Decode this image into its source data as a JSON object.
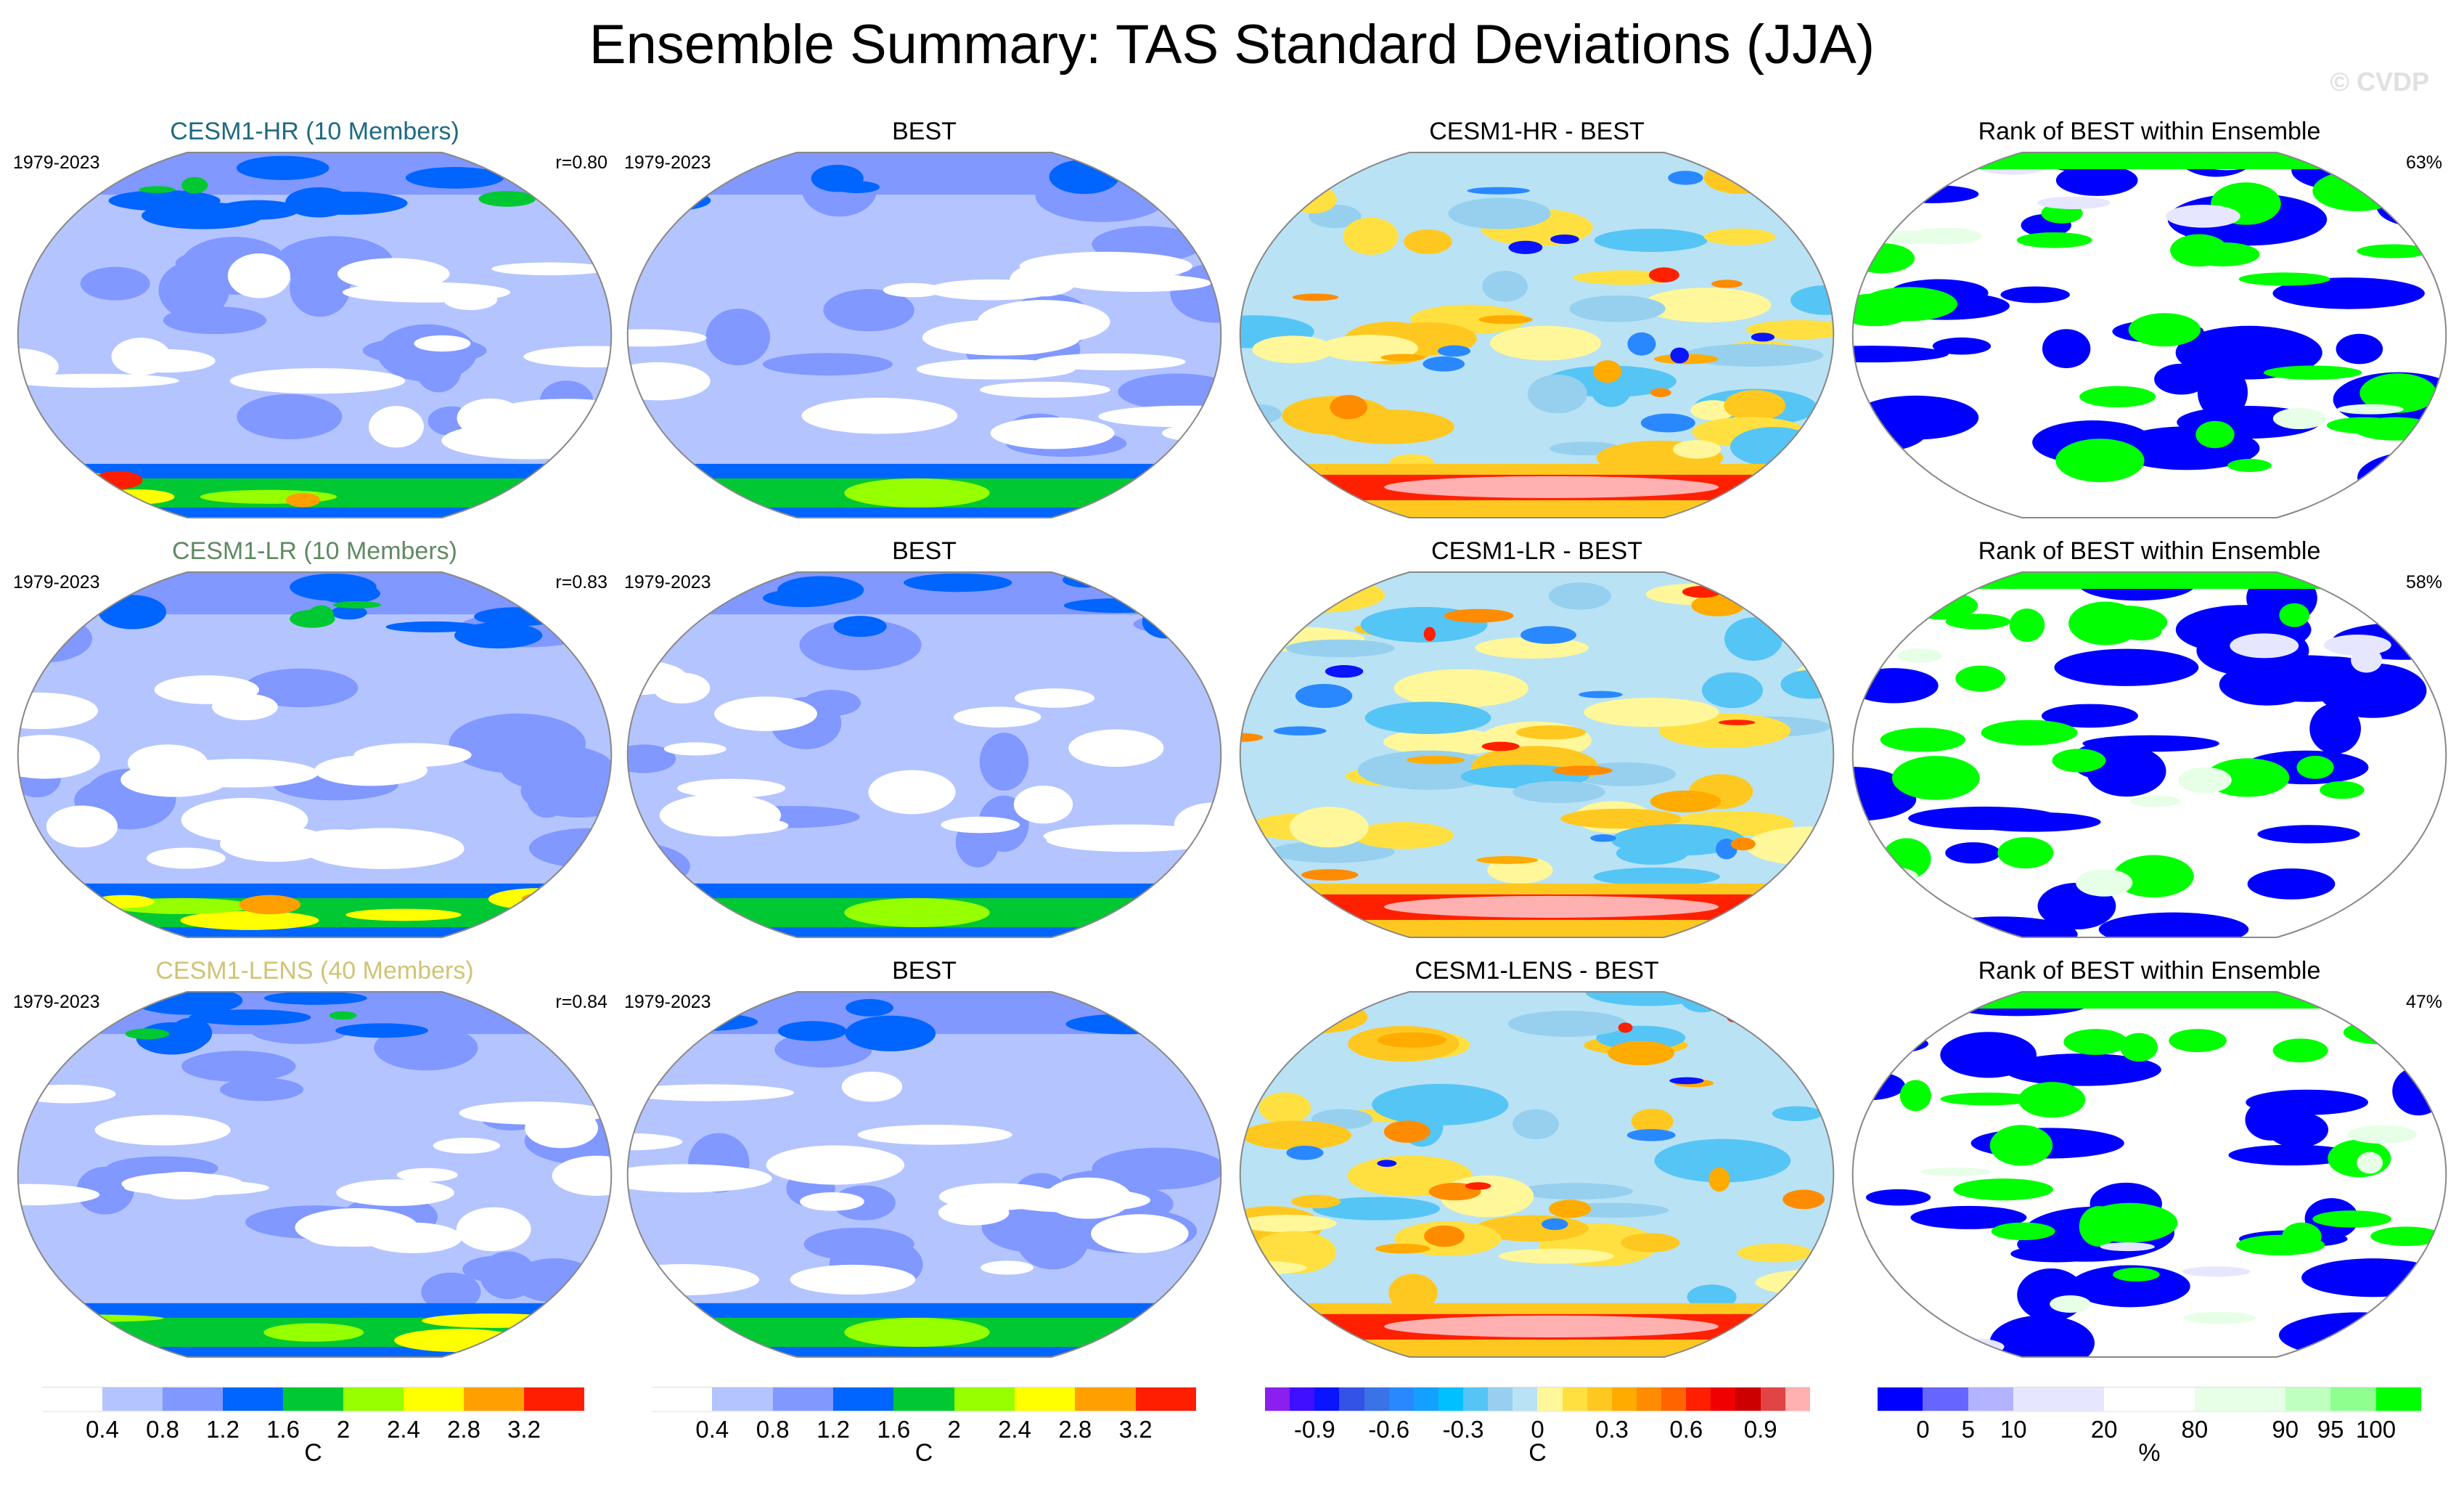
{
  "title": "Ensemble Summary: TAS Standard Deviations (JJA)",
  "watermark": "© CVDP",
  "rows": [
    {
      "model_title": "CESM1-HR (10 Members)",
      "model_title_color": "#1f6a80",
      "model_years": "1979-2023",
      "model_r": "r=0.80",
      "obs_title": "BEST",
      "obs_years": "1979-2023",
      "diff_title": "CESM1-HR - BEST",
      "rank_title": "Rank of BEST within Ensemble",
      "rank_pct": "63%"
    },
    {
      "model_title": "CESM1-LR (10 Members)",
      "model_title_color": "#5f8a62",
      "model_years": "1979-2023",
      "model_r": "r=0.83",
      "obs_title": "BEST",
      "obs_years": "1979-2023",
      "diff_title": "CESM1-LR - BEST",
      "rank_title": "Rank of BEST within Ensemble",
      "rank_pct": "58%"
    },
    {
      "model_title": "CESM1-LENS (40 Members)",
      "model_title_color": "#cfc474",
      "model_years": "1979-2023",
      "model_r": "r=0.84",
      "obs_title": "BEST",
      "obs_years": "1979-2023",
      "diff_title": "CESM1-LENS - BEST",
      "rank_title": "Rank of BEST within Ensemble",
      "rank_pct": "47%"
    }
  ],
  "colorbars": [
    {
      "unit": "C",
      "labels": [
        "0.4",
        "0.8",
        "1.2",
        "1.6",
        "2",
        "2.4",
        "2.8",
        "3.2"
      ],
      "label_boundaries": [
        1,
        2,
        3,
        4,
        5,
        6,
        7,
        8
      ],
      "widths": [
        1,
        1,
        1,
        1,
        1,
        1,
        1,
        1,
        1
      ],
      "colors": [
        "#ffffff",
        "#b4c4ff",
        "#8098ff",
        "#0064ff",
        "#00c832",
        "#96ff00",
        "#ffff00",
        "#ffa000",
        "#ff1e00"
      ]
    },
    {
      "unit": "C",
      "labels": [
        "0.4",
        "0.8",
        "1.2",
        "1.6",
        "2",
        "2.4",
        "2.8",
        "3.2"
      ],
      "label_boundaries": [
        1,
        2,
        3,
        4,
        5,
        6,
        7,
        8
      ],
      "widths": [
        1,
        1,
        1,
        1,
        1,
        1,
        1,
        1,
        1
      ],
      "colors": [
        "#ffffff",
        "#b4c4ff",
        "#8098ff",
        "#0064ff",
        "#00c832",
        "#96ff00",
        "#ffff00",
        "#ffa000",
        "#ff1e00"
      ]
    },
    {
      "unit": "C",
      "labels": [
        "-0.9",
        "-0.6",
        "-0.3",
        "0",
        "0.3",
        "0.6",
        "0.9"
      ],
      "label_boundaries": [
        2,
        5,
        8,
        11,
        14,
        17,
        20
      ],
      "widths": [
        1,
        1,
        1,
        1,
        1,
        1,
        1,
        1,
        1,
        1,
        1,
        1,
        1,
        1,
        1,
        1,
        1,
        1,
        1,
        1,
        1,
        1
      ],
      "colors": [
        "#8a1ff0",
        "#3f0fff",
        "#0a14ff",
        "#3352e6",
        "#3a73e6",
        "#2a88ff",
        "#14a0ff",
        "#00c0ff",
        "#55c5f5",
        "#96d0ee",
        "#b9e2f5",
        "#fff799",
        "#ffe040",
        "#ffc820",
        "#ffab00",
        "#ff8c00",
        "#ff6400",
        "#ff2000",
        "#f00000",
        "#cc0000",
        "#e04444",
        "#ffb0b0"
      ]
    },
    {
      "unit": "%",
      "labels": [
        "0",
        "5",
        "10",
        "20",
        "80",
        "90",
        "95",
        "100"
      ],
      "label_boundaries": [
        1,
        2,
        3,
        4,
        5,
        6,
        7,
        8
      ],
      "widths": [
        1,
        1,
        1,
        2,
        2,
        2,
        1,
        1,
        1
      ],
      "colors": [
        "#0000ff",
        "#6666ff",
        "#b3b3ff",
        "#e6e6ff",
        "#ffffff",
        "#e6ffe6",
        "#bfffbf",
        "#8fff8f",
        "#00ff00"
      ]
    }
  ]
}
